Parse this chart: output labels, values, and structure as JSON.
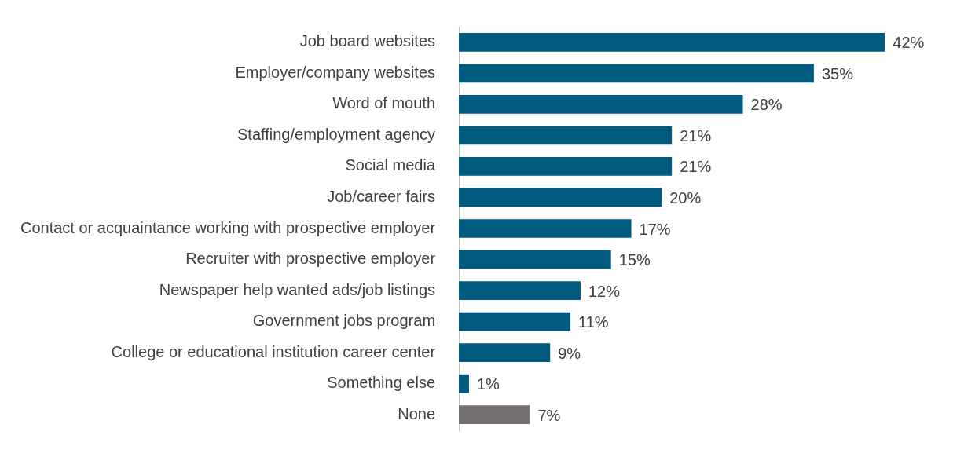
{
  "chart_data": {
    "type": "bar",
    "orientation": "horizontal",
    "categories": [
      "Job board websites",
      "Employer/company websites",
      "Word of mouth",
      "Staffing/employment agency",
      "Social media",
      "Job/career fairs",
      "Contact or acquaintance working with prospective employer",
      "Recruiter with prospective employer",
      "Newspaper help wanted ads/job listings",
      "Government jobs program",
      "College or educational institution career center",
      "Something else",
      "None"
    ],
    "values": [
      42,
      35,
      28,
      21,
      21,
      20,
      17,
      15,
      12,
      11,
      9,
      1,
      7
    ],
    "colors": [
      "#005b7f",
      "#005b7f",
      "#005b7f",
      "#005b7f",
      "#005b7f",
      "#005b7f",
      "#005b7f",
      "#005b7f",
      "#005b7f",
      "#005b7f",
      "#005b7f",
      "#005b7f",
      "#757171"
    ],
    "value_labels": [
      "42%",
      "35%",
      "28%",
      "21%",
      "21%",
      "20%",
      "17%",
      "15%",
      "12%",
      "11%",
      "9%",
      "1%",
      "7%"
    ],
    "legend": false
  }
}
